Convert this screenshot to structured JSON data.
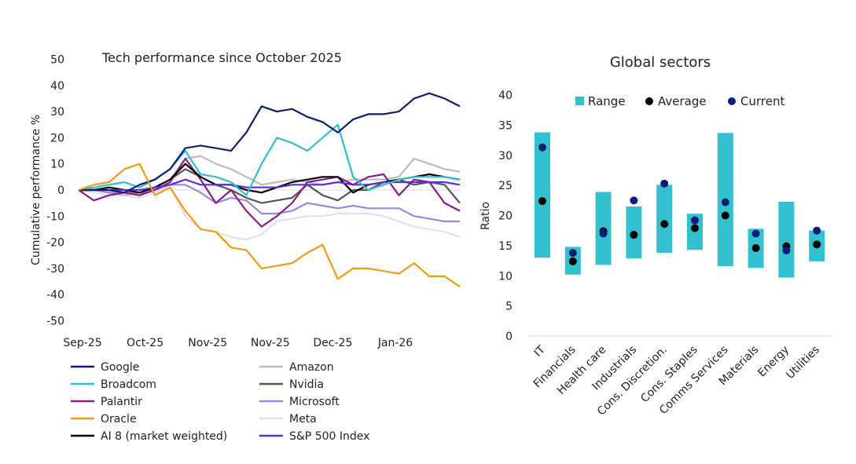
{
  "chart_data": [
    {
      "type": "line",
      "title": "Tech performance since October 2025",
      "xlabel": "",
      "ylabel": "Cumulative performance %",
      "ylim": [
        -50,
        50
      ],
      "yticks": [
        50,
        40,
        30,
        20,
        10,
        0,
        -10,
        -20,
        -30,
        -40,
        -50
      ],
      "x_tick_labels": [
        "Sep-25",
        "Oct-25",
        "Nov-25",
        "Nov-25",
        "Dec-25",
        "Jan-26"
      ],
      "grid": false,
      "legend_position": "bottom",
      "series": [
        {
          "name": "Google",
          "color": "#0b1f6e",
          "values": [
            0,
            0,
            0,
            -1,
            2,
            4,
            8,
            16,
            17,
            16,
            15,
            22,
            32,
            30,
            31,
            28,
            26,
            22,
            27,
            29,
            29,
            30,
            35,
            37,
            35,
            32
          ]
        },
        {
          "name": "Amazon",
          "color": "#bcbcbc",
          "values": [
            0,
            0,
            -1,
            -2,
            -1,
            1,
            4,
            12,
            13,
            10,
            8,
            5,
            2,
            3,
            4,
            3,
            2,
            3,
            4,
            4,
            4,
            5,
            12,
            10,
            8,
            7
          ]
        },
        {
          "name": "Broadcom",
          "color": "#2fbfcc",
          "values": [
            0,
            1,
            2,
            3,
            1,
            4,
            8,
            15,
            6,
            5,
            3,
            -2,
            10,
            20,
            18,
            15,
            20,
            25,
            5,
            0,
            2,
            4,
            5,
            5,
            5,
            4
          ]
        },
        {
          "name": "Nvidia",
          "color": "#555555",
          "values": [
            0,
            0,
            -1,
            -1,
            -2,
            1,
            4,
            8,
            5,
            2,
            0,
            -3,
            -5,
            -4,
            -3,
            2,
            -2,
            -4,
            0,
            0,
            3,
            4,
            2,
            3,
            2,
            -5
          ]
        },
        {
          "name": "Palantir",
          "color": "#8b1a8b",
          "values": [
            0,
            -4,
            -2,
            -1,
            -2,
            0,
            3,
            12,
            4,
            -5,
            0,
            -8,
            -14,
            -10,
            -5,
            3,
            4,
            5,
            2,
            5,
            6,
            -2,
            4,
            3,
            -5,
            -8
          ]
        },
        {
          "name": "Microsoft",
          "color": "#9b86e8",
          "values": [
            0,
            0,
            -1,
            -1,
            -1,
            0,
            2,
            2,
            -1,
            -5,
            -3,
            -4,
            -9,
            -9,
            -8,
            -5,
            -6,
            -7,
            -6,
            -7,
            -7,
            -7,
            -10,
            -11,
            -12,
            -12
          ]
        },
        {
          "name": "Oracle",
          "color": "#f39a12",
          "values": [
            0,
            2,
            3,
            8,
            10,
            -2,
            1,
            -8,
            -15,
            -16,
            -22,
            -23,
            -30,
            -29,
            -28,
            -24,
            -21,
            -34,
            -30,
            -30,
            -31,
            -32,
            -28,
            -33,
            -33,
            -37
          ]
        },
        {
          "name": "Meta",
          "color": "#e4def5",
          "values": [
            0,
            -1,
            -2,
            -2,
            -3,
            -1,
            1,
            -10,
            -15,
            -16,
            -18,
            -19,
            -17,
            -12,
            -11,
            -10,
            -10,
            -9,
            -9,
            -9,
            -10,
            -12,
            -14,
            -15,
            -16,
            -18
          ]
        },
        {
          "name": "AI 8 (market weighted)",
          "color": "#000000",
          "values": [
            0,
            0,
            1,
            0,
            -1,
            1,
            4,
            10,
            5,
            2,
            2,
            0,
            -1,
            1,
            3,
            4,
            5,
            5,
            -1,
            2,
            3,
            4,
            5,
            6,
            5,
            4
          ]
        },
        {
          "name": "S&P 500 Index",
          "color": "#5b2fd6",
          "values": [
            0,
            0,
            0,
            0,
            0,
            1,
            2,
            4,
            2,
            2,
            2,
            1,
            1,
            1,
            2,
            2,
            2,
            3,
            2,
            2,
            3,
            3,
            3,
            3,
            3,
            2
          ]
        }
      ]
    },
    {
      "type": "bar",
      "title": "Global sectors",
      "xlabel": "",
      "ylabel": "Ratio",
      "ylim": [
        0,
        40
      ],
      "yticks": [
        0,
        5,
        10,
        15,
        20,
        25,
        30,
        35,
        40
      ],
      "grid": false,
      "legend_position": "top",
      "legend": [
        "Range",
        "Average",
        "Current"
      ],
      "colors": {
        "range": "#33c0cf",
        "average": "#000000",
        "current": "#0a1f78"
      },
      "categories": [
        "IT",
        "Financials",
        "Health care",
        "Industrials",
        "Cons. Discretion.",
        "Cons. Staples",
        "Comms Services",
        "Materials",
        "Energy",
        "Utilities"
      ],
      "range_low": [
        13.0,
        10.2,
        11.8,
        12.9,
        13.8,
        14.3,
        11.6,
        11.3,
        9.7,
        12.4
      ],
      "range_high": [
        33.8,
        14.8,
        23.9,
        21.5,
        25.1,
        20.3,
        33.7,
        17.8,
        22.3,
        17.5
      ],
      "average": [
        22.4,
        12.4,
        17.4,
        16.8,
        18.6,
        17.9,
        20.0,
        14.6,
        14.9,
        15.2
      ],
      "current": [
        31.3,
        13.8,
        17.0,
        22.5,
        25.3,
        19.2,
        22.2,
        17.0,
        14.2,
        17.5
      ]
    }
  ]
}
